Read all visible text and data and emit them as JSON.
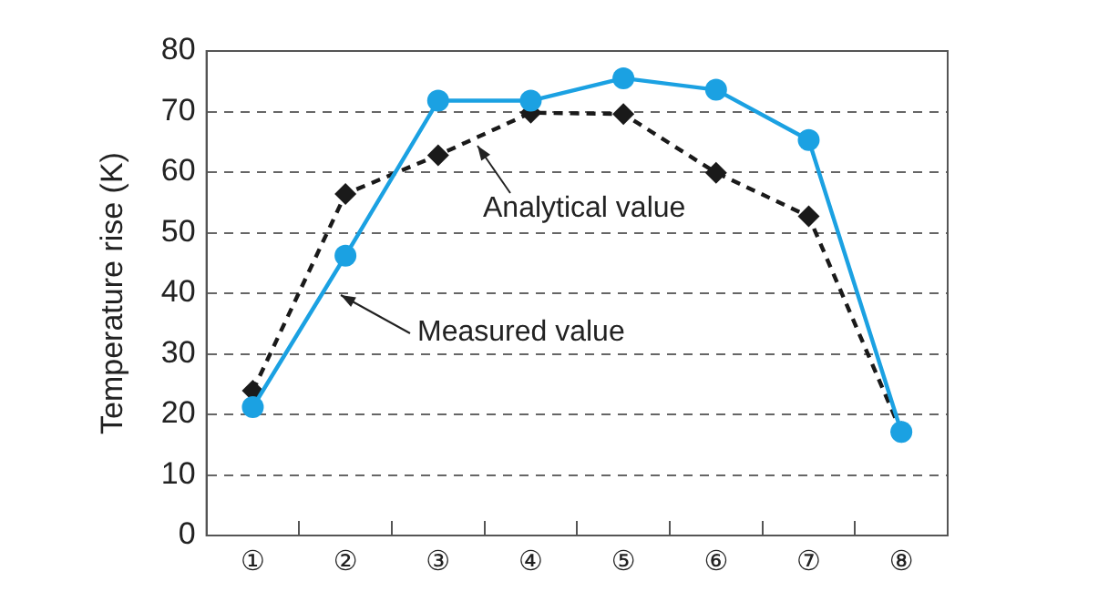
{
  "chart_data": {
    "type": "line",
    "ylabel": "Temperature rise (K)",
    "categories": [
      "①",
      "②",
      "③",
      "④",
      "⑤",
      "⑥",
      "⑦",
      "⑧"
    ],
    "series": [
      {
        "color": "#1ba1e2",
        "values": [
          21.2,
          46.2,
          71.8,
          71.8,
          75.5,
          73.6,
          65.3,
          17.1
        ],
        "marker": "circle",
        "line_style": "solid"
      },
      {
        "color": "#1a1a1a",
        "values": [
          23.9,
          56.4,
          62.8,
          69.8,
          69.6,
          59.9,
          52.7,
          17.1
        ],
        "marker": "diamond",
        "line_style": "dashed"
      }
    ],
    "ylim": [
      0,
      80
    ],
    "yticks": [
      0,
      10,
      20,
      30,
      40,
      50,
      60,
      70,
      80
    ],
    "grid": "y",
    "legend": false,
    "annotations": [
      "Analytical value",
      "Measured value"
    ]
  }
}
